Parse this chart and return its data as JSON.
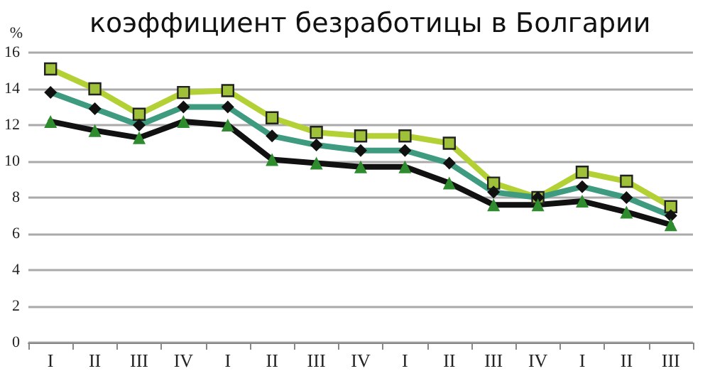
{
  "chart_data": {
    "type": "line",
    "title": "коэффициент безработицы в Болгарии",
    "ylabel": "%",
    "categories": [
      "I",
      "II",
      "III",
      "IV",
      "I",
      "II",
      "III",
      "IV",
      "I",
      "II",
      "III",
      "IV",
      "I",
      "II",
      "III"
    ],
    "series": [
      {
        "color": "#b3d135",
        "marker": "square",
        "values": [
          15.1,
          14.0,
          12.6,
          13.8,
          13.9,
          12.4,
          11.6,
          11.4,
          11.4,
          11.0,
          8.8,
          8.0,
          9.4,
          8.9,
          7.5
        ]
      },
      {
        "color": "#3f9b7f",
        "marker": "diamond",
        "values": [
          13.8,
          12.9,
          12.0,
          13.0,
          13.0,
          11.4,
          10.9,
          10.6,
          10.6,
          9.9,
          8.3,
          8.0,
          8.6,
          8.0,
          7.0
        ]
      },
      {
        "color": "#111111",
        "marker": "triangle",
        "values": [
          12.2,
          11.7,
          11.3,
          12.2,
          12.0,
          10.1,
          9.9,
          9.7,
          9.7,
          8.8,
          7.6,
          7.6,
          7.8,
          7.2,
          6.5
        ]
      }
    ],
    "ylim": [
      0,
      16
    ],
    "yticks": [
      0,
      2,
      4,
      6,
      8,
      10,
      12,
      14,
      16
    ],
    "grid": "y",
    "line_style": "solid"
  }
}
